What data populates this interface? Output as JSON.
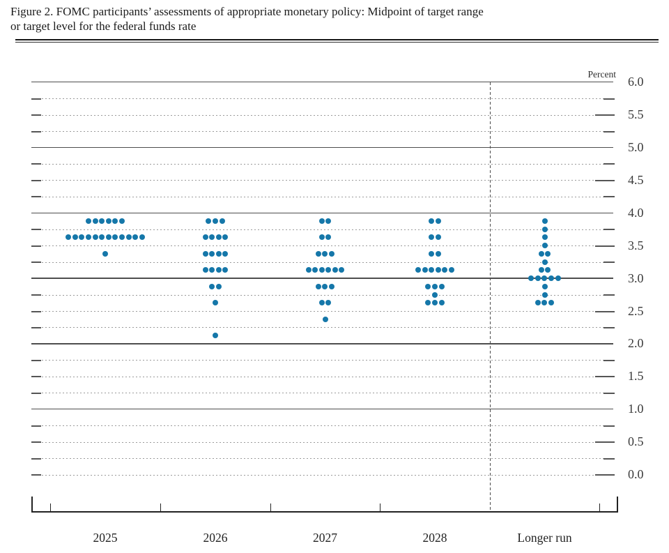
{
  "figure": {
    "title_line1": "Figure 2. FOMC participants’ assessments of appropriate monetary policy: Midpoint of target range",
    "title_line2": "or target level for the federal funds rate"
  },
  "chart_data": {
    "type": "scatter",
    "subtype": "fomc-dot-plot",
    "title": "FOMC participants' assessments of appropriate monetary policy: Midpoint of target range or target level for the federal funds rate",
    "unit_label": "Percent",
    "ylabel": "Percent",
    "ylim": [
      0.0,
      6.0
    ],
    "y_grid_step": 0.25,
    "y_label_step": 0.5,
    "y_tick_labels": [
      "0.0",
      "0.5",
      "1.0",
      "1.5",
      "2.0",
      "2.5",
      "3.0",
      "3.5",
      "4.0",
      "4.5",
      "5.0",
      "5.5",
      "6.0"
    ],
    "solid_grid_values": [
      1.0,
      2.0,
      3.0,
      4.0,
      5.0,
      6.0
    ],
    "grid": true,
    "legend": "none",
    "categories": [
      "2025",
      "2026",
      "2027",
      "2028",
      "Longer run"
    ],
    "separator_after_category": "2028",
    "dot_color": "#1577a9",
    "participants_per_column": 19,
    "series": [
      {
        "category": "2025",
        "distribution": [
          {
            "rate": 3.875,
            "count": 6
          },
          {
            "rate": 3.625,
            "count": 12
          },
          {
            "rate": 3.375,
            "count": 1
          }
        ]
      },
      {
        "category": "2026",
        "distribution": [
          {
            "rate": 3.875,
            "count": 3
          },
          {
            "rate": 3.625,
            "count": 4
          },
          {
            "rate": 3.375,
            "count": 4
          },
          {
            "rate": 3.125,
            "count": 4
          },
          {
            "rate": 2.875,
            "count": 2
          },
          {
            "rate": 2.625,
            "count": 1
          },
          {
            "rate": 2.125,
            "count": 1
          }
        ]
      },
      {
        "category": "2027",
        "distribution": [
          {
            "rate": 3.875,
            "count": 2
          },
          {
            "rate": 3.625,
            "count": 2
          },
          {
            "rate": 3.375,
            "count": 3
          },
          {
            "rate": 3.125,
            "count": 6
          },
          {
            "rate": 2.875,
            "count": 3
          },
          {
            "rate": 2.625,
            "count": 2
          },
          {
            "rate": 2.375,
            "count": 1
          }
        ]
      },
      {
        "category": "2028",
        "distribution": [
          {
            "rate": 3.875,
            "count": 2
          },
          {
            "rate": 3.625,
            "count": 2
          },
          {
            "rate": 3.375,
            "count": 2
          },
          {
            "rate": 3.125,
            "count": 6
          },
          {
            "rate": 2.875,
            "count": 3
          },
          {
            "rate": 2.75,
            "count": 1
          },
          {
            "rate": 2.625,
            "count": 3
          }
        ]
      },
      {
        "category": "Longer run",
        "distribution": [
          {
            "rate": 3.875,
            "count": 1
          },
          {
            "rate": 3.75,
            "count": 1
          },
          {
            "rate": 3.625,
            "count": 1
          },
          {
            "rate": 3.5,
            "count": 1
          },
          {
            "rate": 3.375,
            "count": 2
          },
          {
            "rate": 3.25,
            "count": 1
          },
          {
            "rate": 3.125,
            "count": 2
          },
          {
            "rate": 3.0,
            "count": 5
          },
          {
            "rate": 2.875,
            "count": 1
          },
          {
            "rate": 2.75,
            "count": 1
          },
          {
            "rate": 2.625,
            "count": 3
          }
        ]
      }
    ]
  },
  "colors": {
    "dot": "#1577a9",
    "solid_grid": "#4d4d4d",
    "dotted_grid": "#9a9a9a",
    "axis": "#222222",
    "text": "#1b1b1b"
  }
}
